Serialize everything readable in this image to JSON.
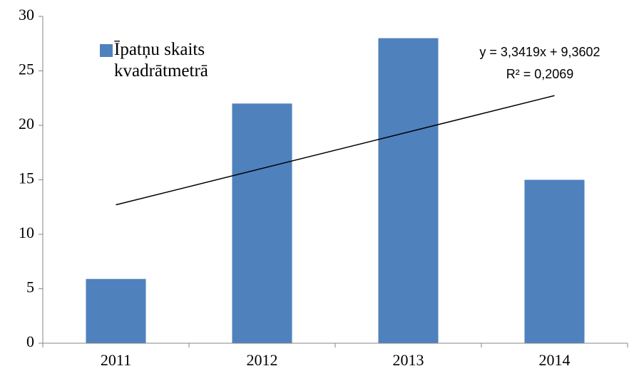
{
  "chart_data": {
    "type": "bar",
    "categories": [
      "2011",
      "2012",
      "2013",
      "2014"
    ],
    "series": [
      {
        "name": "Īpatņu skaits kvadrātmetrā",
        "color": "#4f81bd",
        "values": [
          5.9,
          22,
          28,
          15
        ]
      }
    ],
    "ylim": [
      0,
      30
    ],
    "yticks": [
      0,
      5,
      10,
      15,
      20,
      25,
      30
    ],
    "grid": false,
    "legend": "top-left",
    "trendline": {
      "slope": 3.3419,
      "intercept": 9.3602,
      "color": "#000000",
      "equation": "y = 3,3419x + 9,3602",
      "r_squared": "R² = 0,2069"
    }
  }
}
